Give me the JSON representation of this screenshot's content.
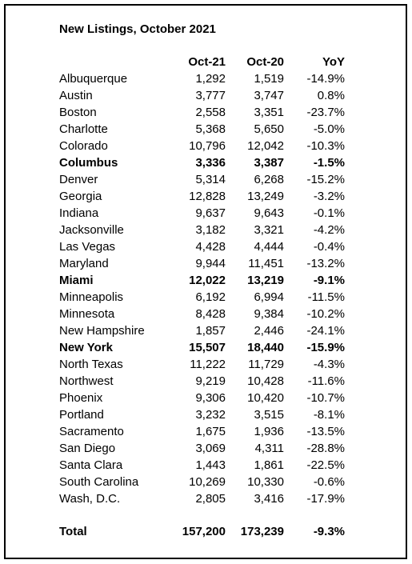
{
  "table": {
    "title": "New Listings, October 2021",
    "header": [
      "Oct-21",
      "Oct-20",
      "YoY"
    ],
    "rows": [
      {
        "cells": [
          "Albuquerque",
          "1,292",
          "1,519",
          "-14.9%"
        ]
      },
      {
        "cells": [
          "Austin",
          "3,777",
          "3,747",
          "0.8%"
        ]
      },
      {
        "cells": [
          "Boston",
          "2,558",
          "3,351",
          "-23.7%"
        ]
      },
      {
        "cells": [
          "Charlotte",
          "5,368",
          "5,650",
          "-5.0%"
        ]
      },
      {
        "cells": [
          "Colorado",
          "10,796",
          "12,042",
          "-10.3%"
        ]
      },
      {
        "cells": [
          "Columbus",
          "3,336",
          "3,387",
          "-1.5%"
        ],
        "bold": true
      },
      {
        "cells": [
          "Denver",
          "5,314",
          "6,268",
          "-15.2%"
        ]
      },
      {
        "cells": [
          "Georgia",
          "12,828",
          "13,249",
          "-3.2%"
        ]
      },
      {
        "cells": [
          "Indiana",
          "9,637",
          "9,643",
          "-0.1%"
        ]
      },
      {
        "cells": [
          "Jacksonville",
          "3,182",
          "3,321",
          "-4.2%"
        ]
      },
      {
        "cells": [
          "Las Vegas",
          "4,428",
          "4,444",
          "-0.4%"
        ]
      },
      {
        "cells": [
          "Maryland",
          "9,944",
          "11,451",
          "-13.2%"
        ]
      },
      {
        "cells": [
          "Miami",
          "12,022",
          "13,219",
          "-9.1%"
        ],
        "bold": true
      },
      {
        "cells": [
          "Minneapolis",
          "6,192",
          "6,994",
          "-11.5%"
        ]
      },
      {
        "cells": [
          "Minnesota",
          "8,428",
          "9,384",
          "-10.2%"
        ]
      },
      {
        "cells": [
          "New Hampshire",
          "1,857",
          "2,446",
          "-24.1%"
        ]
      },
      {
        "cells": [
          "New York",
          "15,507",
          "18,440",
          "-15.9%"
        ],
        "bold": true
      },
      {
        "cells": [
          "North Texas",
          "11,222",
          "11,729",
          "-4.3%"
        ]
      },
      {
        "cells": [
          "Northwest",
          "9,219",
          "10,428",
          "-11.6%"
        ]
      },
      {
        "cells": [
          "Phoenix",
          "9,306",
          "10,420",
          "-10.7%"
        ]
      },
      {
        "cells": [
          "Portland",
          "3,232",
          "3,515",
          "-8.1%"
        ]
      },
      {
        "cells": [
          "Sacramento",
          "1,675",
          "1,936",
          "-13.5%"
        ]
      },
      {
        "cells": [
          "San Diego",
          "3,069",
          "4,311",
          "-28.8%"
        ]
      },
      {
        "cells": [
          "Santa Clara",
          "1,443",
          "1,861",
          "-22.5%"
        ]
      },
      {
        "cells": [
          "South Carolina",
          "10,269",
          "10,330",
          "-0.6%"
        ]
      },
      {
        "cells": [
          "Wash, D.C.",
          "2,805",
          "3,416",
          "-17.9%"
        ]
      }
    ],
    "total": {
      "cells": [
        "Total",
        "157,200",
        "173,239",
        "-9.3%"
      ],
      "bold": true
    }
  }
}
